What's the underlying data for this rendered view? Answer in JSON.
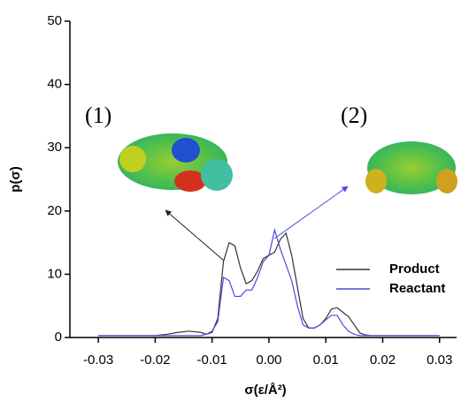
{
  "chart_data": {
    "type": "line",
    "x_label": "σ(ε/Å²)",
    "y_label": "p(σ)",
    "annotations": [
      "(1)",
      "(2)"
    ],
    "x": [
      -0.03,
      -0.02,
      -0.018,
      -0.016,
      -0.014,
      -0.012,
      -0.011,
      -0.01,
      -0.009,
      -0.008,
      -0.007,
      -0.006,
      -0.005,
      -0.004,
      -0.003,
      -0.002,
      -0.001,
      0,
      0.001,
      0.002,
      0.003,
      0.004,
      0.005,
      0.006,
      0.007,
      0.008,
      0.009,
      0.01,
      0.011,
      0.012,
      0.013,
      0.014,
      0.015,
      0.016,
      0.017,
      0.018,
      0.02,
      0.03
    ],
    "series": [
      {
        "name": "Product",
        "color": "#333333",
        "values": [
          0.3,
          0.3,
          0.5,
          0.8,
          1.0,
          0.8,
          0.5,
          0.8,
          3,
          12,
          15,
          14.5,
          11,
          8.5,
          9,
          10.5,
          12.5,
          13,
          13.5,
          15.5,
          16.5,
          13,
          8,
          3,
          1.5,
          1.5,
          2,
          3,
          4.5,
          4.7,
          4,
          3.3,
          2,
          0.7,
          0.4,
          0.3,
          0.3,
          0.3
        ]
      },
      {
        "name": "Reactant",
        "color": "#4a4ae0",
        "values": [
          0.3,
          0.3,
          0.3,
          0.3,
          0.3,
          0.3,
          0.5,
          1,
          2.5,
          9.5,
          9,
          6.5,
          6.5,
          7.5,
          7.5,
          9.5,
          12,
          13,
          17,
          14,
          11.5,
          9,
          5,
          2,
          1.5,
          1.5,
          2,
          2.8,
          3.5,
          3.5,
          2,
          1,
          0.5,
          0.3,
          0.3,
          0.3,
          0.3,
          0.3
        ]
      }
    ],
    "xlim": [
      -0.035,
      0.033
    ],
    "xticks": [
      -0.03,
      -0.02,
      -0.01,
      {
        "value": 0,
        "label": "0.00"
      },
      0.01,
      0.02,
      0.03
    ],
    "ylim": [
      0,
      50
    ],
    "yticks": [
      0,
      10,
      20,
      30,
      40,
      50
    ],
    "legend": "right"
  }
}
